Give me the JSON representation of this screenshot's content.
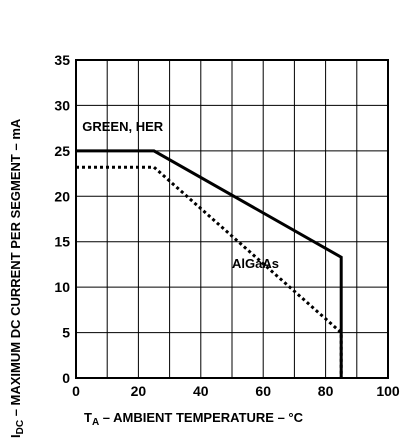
{
  "chart_data": {
    "type": "line",
    "xlabel_main": "T",
    "xlabel_sub": "A",
    "xlabel_rest": " – AMBIENT TEMPERATURE – °C",
    "ylabel_main": "I",
    "ylabel_sub": "DC",
    "ylabel_rest": " – MAXIMUM DC CURRENT PER SEGMENT – mA",
    "xlim": [
      0,
      100
    ],
    "ylim": [
      0,
      35
    ],
    "x_ticks": [
      0,
      20,
      40,
      60,
      80,
      100
    ],
    "y_ticks": [
      0,
      5,
      10,
      15,
      20,
      25,
      30,
      35
    ],
    "grid": true,
    "series": [
      {
        "name": "GREEN, HER",
        "style": "solid",
        "color": "#000000",
        "points": [
          [
            0,
            25
          ],
          [
            25,
            25
          ],
          [
            85,
            13.3
          ],
          [
            85,
            0
          ]
        ]
      },
      {
        "name": "AlGaAs",
        "style": "dotted",
        "color": "#000000",
        "points": [
          [
            0,
            23.2
          ],
          [
            25,
            23.2
          ],
          [
            85,
            5
          ],
          [
            85,
            0
          ]
        ]
      }
    ]
  }
}
